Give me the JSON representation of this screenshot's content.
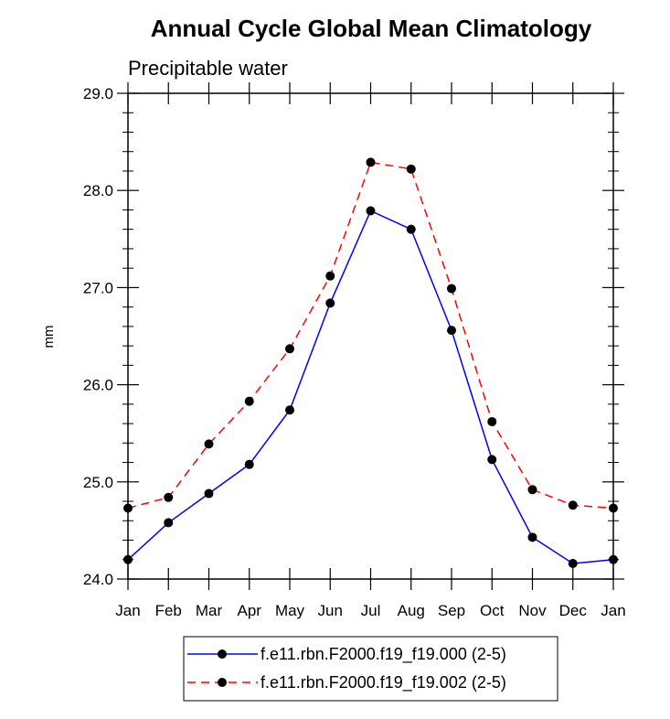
{
  "chart_data": {
    "type": "line",
    "title": "Annual Cycle Global Mean Climatology",
    "subtitle": "Precipitable water",
    "xlabel": "",
    "ylabel": "mm",
    "categories": [
      "Jan",
      "Feb",
      "Mar",
      "Apr",
      "May",
      "Jun",
      "Jul",
      "Aug",
      "Sep",
      "Oct",
      "Nov",
      "Dec",
      "Jan"
    ],
    "ylim": [
      24.0,
      29.0
    ],
    "yticks": [
      "24.0",
      "25.0",
      "26.0",
      "27.0",
      "28.0",
      "29.0"
    ],
    "grid": false,
    "legend_position": "bottom",
    "series": [
      {
        "name": "f.e11.rbn.F2000.f19_f19.000 (2-5)",
        "color": "#0000ff",
        "dash": "solid",
        "values": [
          24.2,
          24.58,
          24.88,
          25.18,
          25.74,
          26.84,
          27.79,
          27.6,
          26.56,
          25.23,
          24.43,
          24.16,
          24.2
        ]
      },
      {
        "name": "f.e11.rbn.F2000.f19_f19.002 (2-5)",
        "color": "#ff0000",
        "dash": "dashed",
        "values": [
          24.73,
          24.84,
          25.39,
          25.83,
          26.37,
          27.12,
          28.29,
          28.22,
          26.99,
          25.62,
          24.92,
          24.76,
          24.73
        ]
      }
    ]
  }
}
